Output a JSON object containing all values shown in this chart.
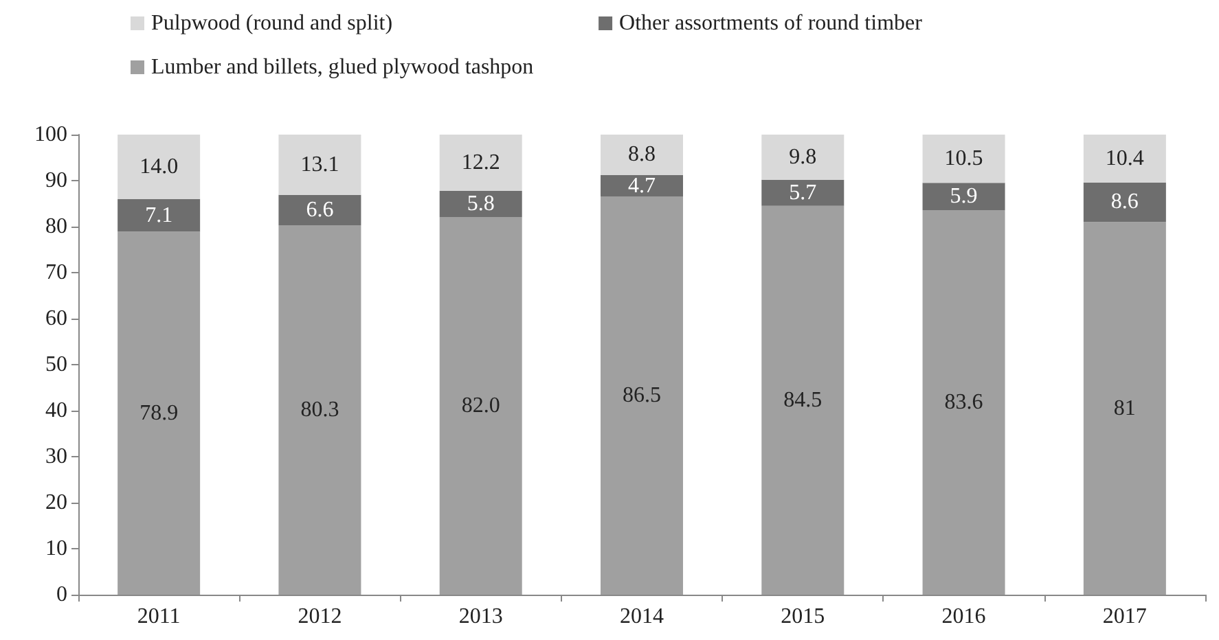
{
  "chart_data": {
    "type": "bar",
    "stacked": true,
    "categories": [
      "2011",
      "2012",
      "2013",
      "2014",
      "2015",
      "2016",
      "2017"
    ],
    "series": [
      {
        "name": "Lumber and billets, glued plywood tashpon",
        "color": "#a0a0a0",
        "values": [
          78.9,
          80.3,
          82.0,
          86.5,
          84.5,
          83.6,
          81
        ],
        "value_labels": [
          "78.9",
          "80.3",
          "82.0",
          "86.5",
          "84.5",
          "83.6",
          "81"
        ]
      },
      {
        "name": "Other assortments of round timber",
        "color": "#6e6e6e",
        "values": [
          7.1,
          6.6,
          5.8,
          4.7,
          5.7,
          5.9,
          8.6
        ],
        "value_labels": [
          "7.1",
          "6.6",
          "5.8",
          "4.7",
          "5.7",
          "5.9",
          "8.6"
        ]
      },
      {
        "name": "Pulpwood (round and split)",
        "color": "#d9d9d9",
        "values": [
          14.0,
          13.1,
          12.2,
          8.8,
          9.8,
          10.5,
          10.4
        ],
        "value_labels": [
          "14.0",
          "13.1",
          "12.2",
          "8.8",
          "9.8",
          "10.5",
          "10.4"
        ]
      }
    ],
    "ylim": [
      0,
      100
    ],
    "yticks": [
      0,
      10,
      20,
      30,
      40,
      50,
      60,
      70,
      80,
      90,
      100
    ],
    "grid": false,
    "legend": "top left"
  }
}
